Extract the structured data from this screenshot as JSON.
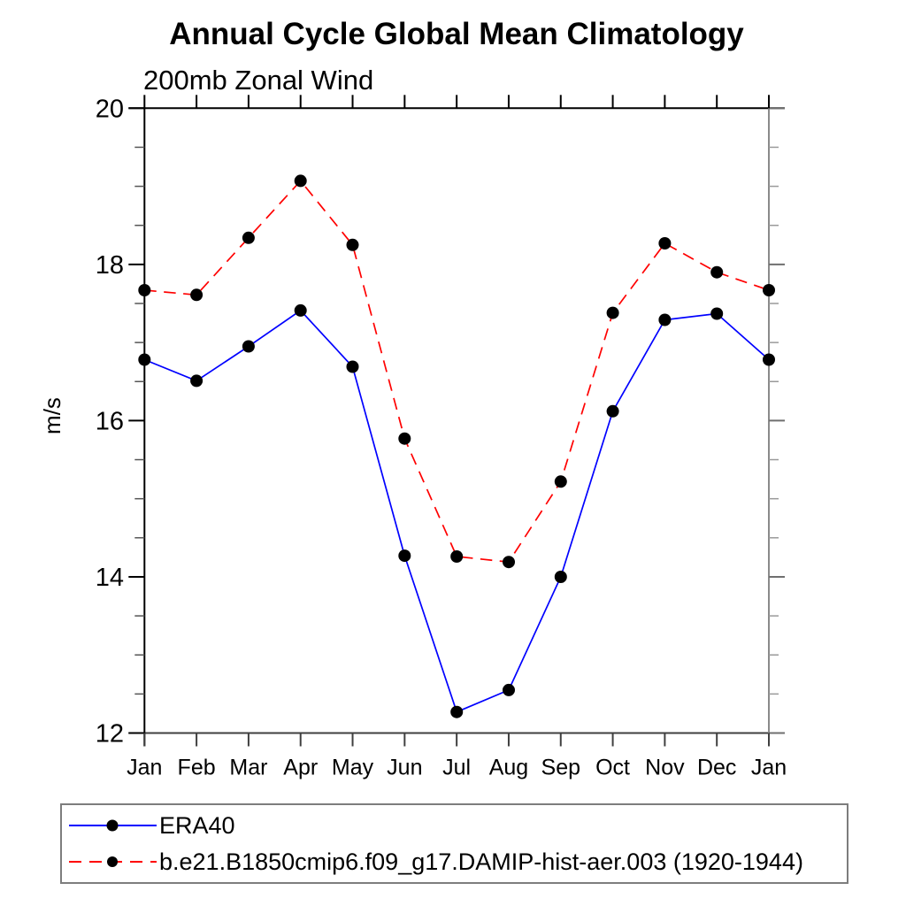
{
  "chart_data": {
    "type": "line",
    "title": "Annual Cycle Global Mean Climatology",
    "subtitle": "200mb Zonal Wind",
    "ylabel": "m/s",
    "categories": [
      "Jan",
      "Feb",
      "Mar",
      "Apr",
      "May",
      "Jun",
      "Jul",
      "Aug",
      "Sep",
      "Oct",
      "Nov",
      "Dec",
      "Jan"
    ],
    "ylim": [
      12,
      20
    ],
    "ytick_major": [
      12,
      14,
      16,
      18,
      20
    ],
    "ytick_minor_step": 0.5,
    "grid": "off",
    "legend_position": "bottom-left-box",
    "marker": "filled-circle",
    "marker_color": "#000000",
    "series": [
      {
        "name": "ERA40",
        "line_style": "solid",
        "color": "#0000ff",
        "values": [
          16.78,
          16.51,
          16.95,
          17.41,
          16.69,
          14.27,
          12.27,
          12.55,
          14.0,
          16.12,
          17.29,
          17.37,
          16.78
        ]
      },
      {
        "name": "b.e21.B1850cmip6.f09_g17.DAMIP-hist-aer.003 (1920-1944)",
        "line_style": "dashed",
        "color": "#ff0000",
        "values": [
          17.67,
          17.61,
          18.34,
          19.07,
          18.25,
          15.77,
          14.26,
          14.19,
          15.22,
          17.38,
          18.27,
          17.9,
          17.67
        ]
      }
    ]
  }
}
